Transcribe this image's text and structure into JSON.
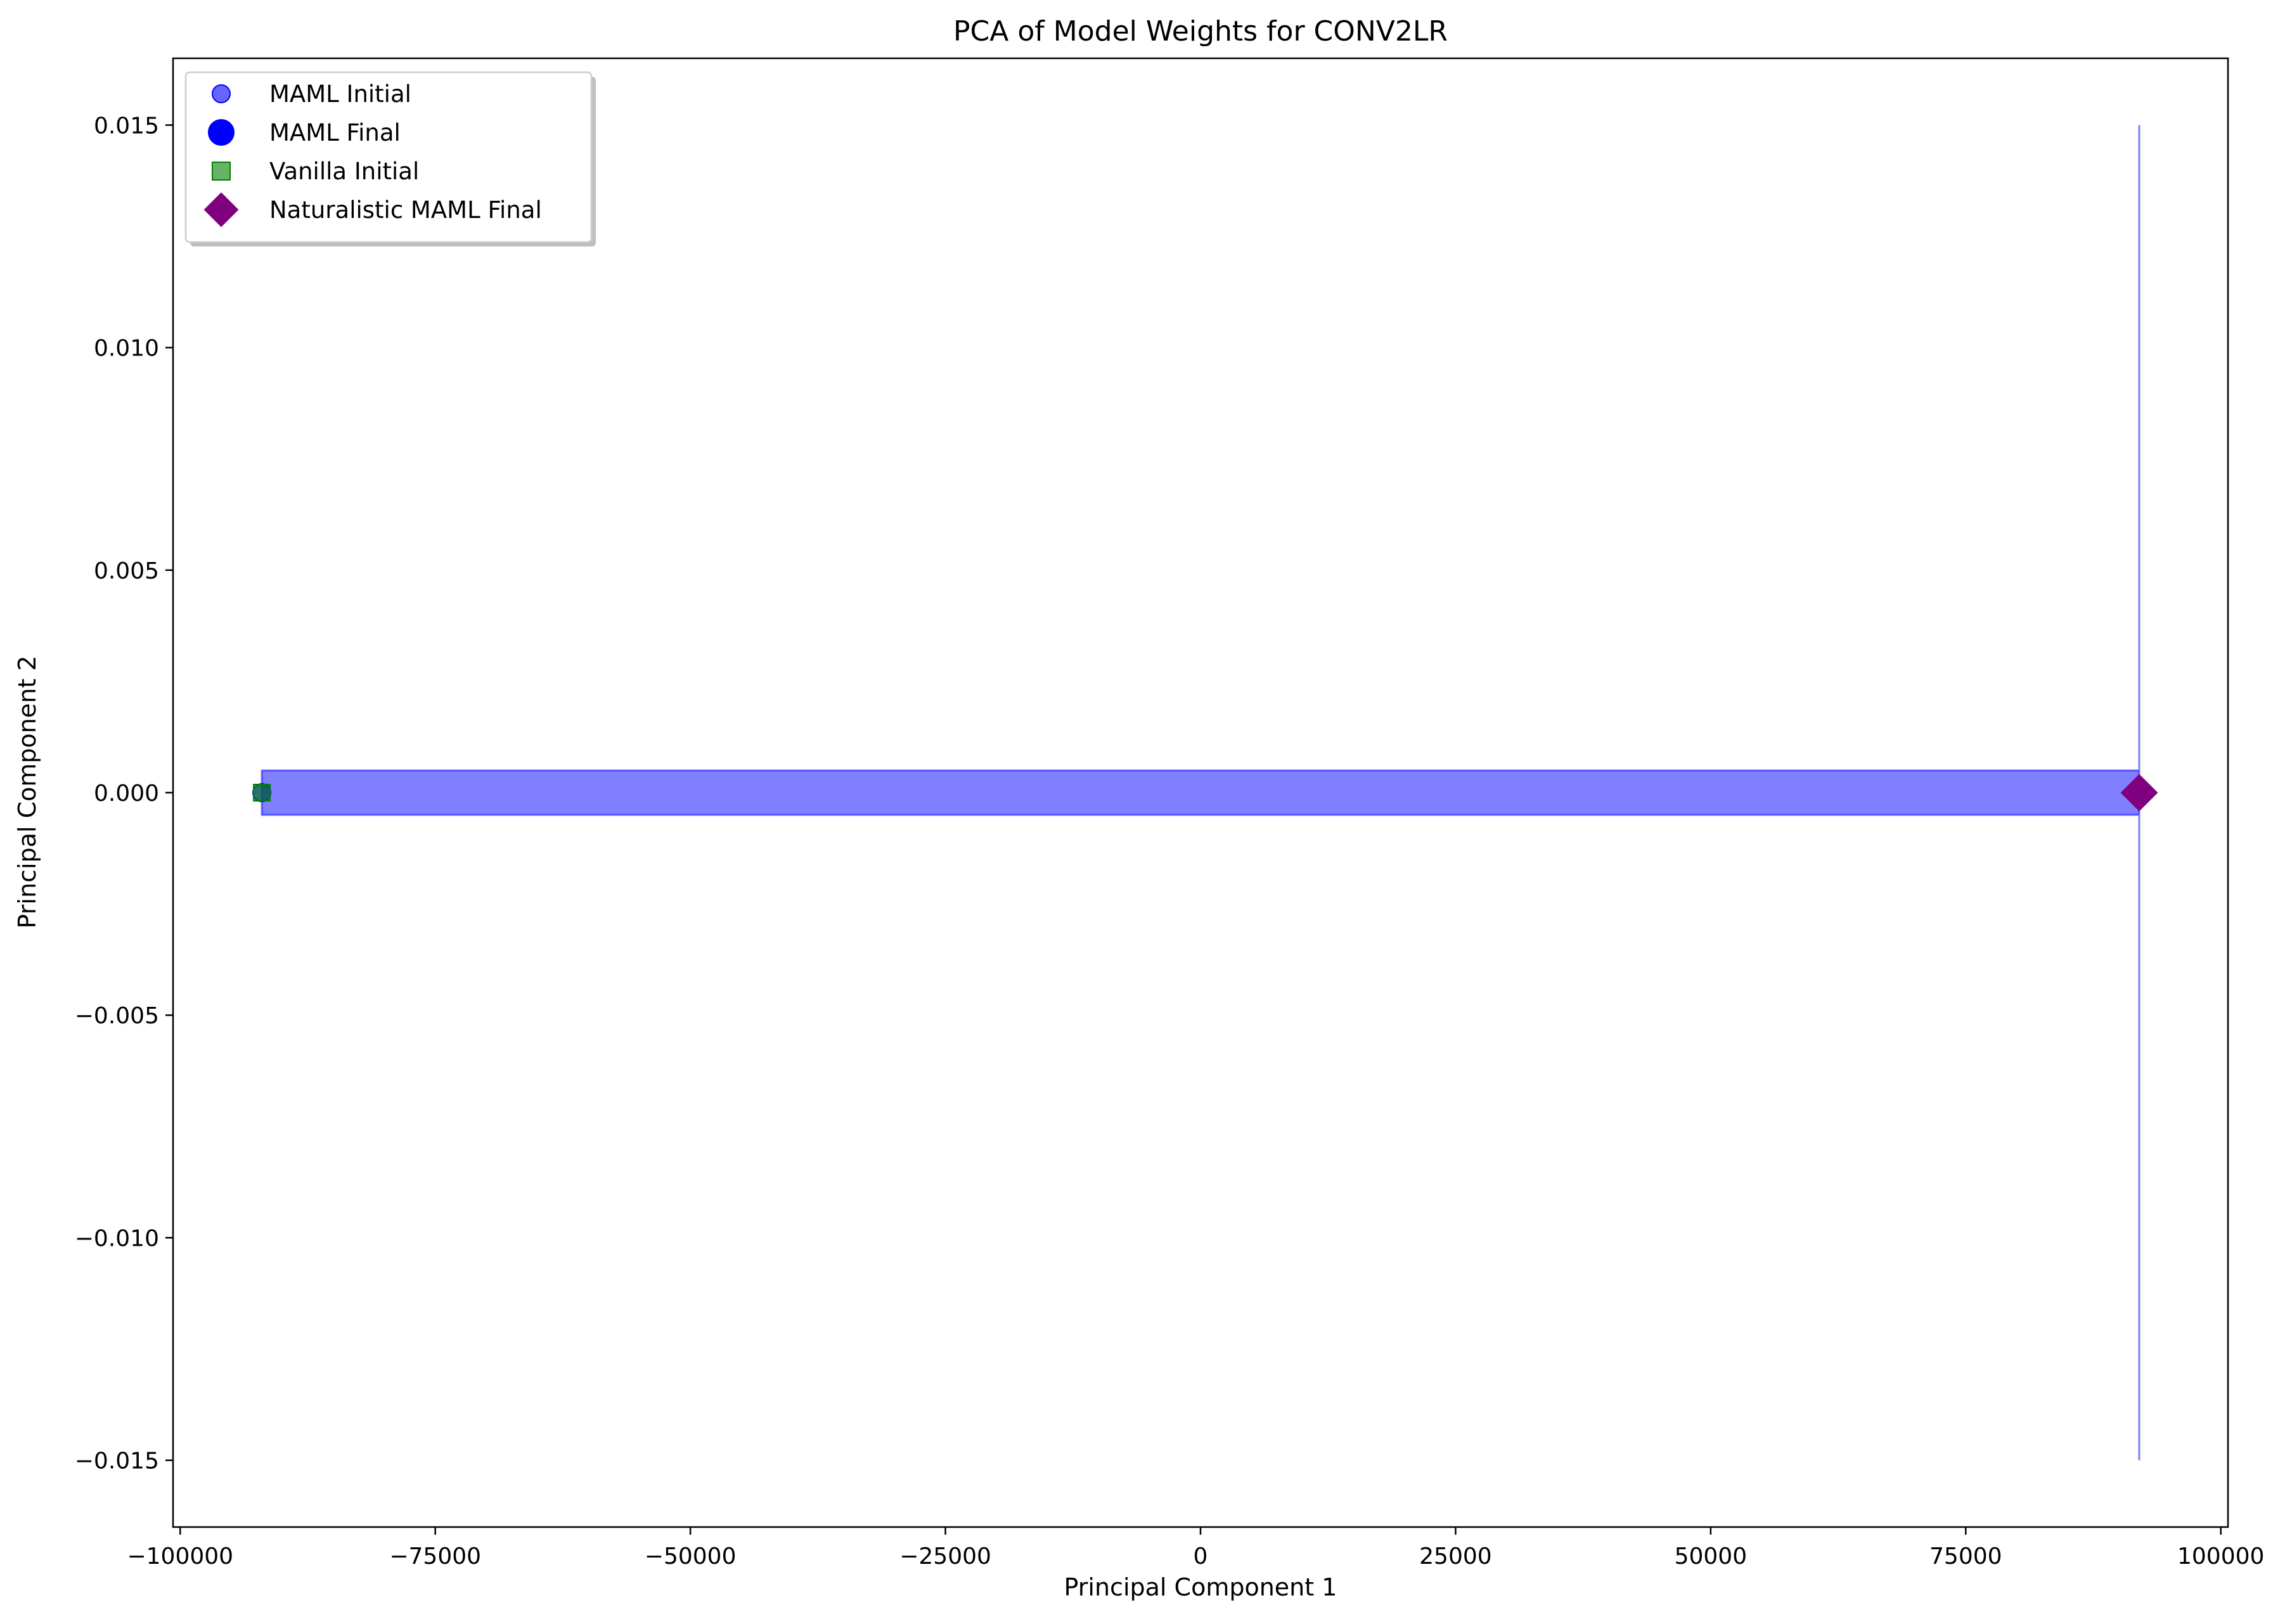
{
  "chart_data": {
    "type": "scatter",
    "title": "PCA of Model Weights for CONV2LR",
    "xlabel": "Principal Component 1",
    "ylabel": "Principal Component 2",
    "xlim": [
      -100700,
      100700
    ],
    "ylim": [
      -0.0165,
      0.0165
    ],
    "xticks": [
      {
        "value": -100000,
        "label": "−100000"
      },
      {
        "value": -75000,
        "label": "−75000"
      },
      {
        "value": -50000,
        "label": "−50000"
      },
      {
        "value": -25000,
        "label": "−25000"
      },
      {
        "value": 0,
        "label": "0"
      },
      {
        "value": 25000,
        "label": "25000"
      },
      {
        "value": 50000,
        "label": "50000"
      },
      {
        "value": 75000,
        "label": "75000"
      },
      {
        "value": 100000,
        "label": "100000"
      }
    ],
    "yticks": [
      {
        "value": 0.015,
        "label": "0.015"
      },
      {
        "value": 0.01,
        "label": "0.010"
      },
      {
        "value": 0.005,
        "label": "0.005"
      },
      {
        "value": 0.0,
        "label": "0.000"
      },
      {
        "value": -0.005,
        "label": "−0.005"
      },
      {
        "value": -0.01,
        "label": "−0.010"
      },
      {
        "value": -0.015,
        "label": "−0.015"
      }
    ],
    "grid": false,
    "legend_position": "top-left",
    "series": [
      {
        "name": "MAML Initial",
        "marker": "circle",
        "color": "#0000ff",
        "alpha": 0.6,
        "points": [
          [
            -92000,
            0.0
          ]
        ]
      },
      {
        "name": "MAML Final",
        "marker": "circle",
        "color": "#0000ff",
        "alpha": 1.0,
        "points": [
          [
            92000,
            0.0
          ]
        ]
      },
      {
        "name": "Vanilla Initial",
        "marker": "square",
        "color": "#008000",
        "alpha": 0.6,
        "points": [
          [
            -92000,
            0.0
          ]
        ]
      },
      {
        "name": "Naturalistic MAML Final",
        "marker": "diamond",
        "color": "#800080",
        "alpha": 1.0,
        "points": [
          [
            92000,
            0.0
          ]
        ]
      }
    ],
    "annotations": [
      {
        "kind": "arrow",
        "color": "#0000ff",
        "alpha": 0.5,
        "from": [
          -92000,
          0.0
        ],
        "to": [
          92000,
          0.0
        ],
        "half_width": 0.0005,
        "head_half_width": 0.015
      }
    ]
  }
}
